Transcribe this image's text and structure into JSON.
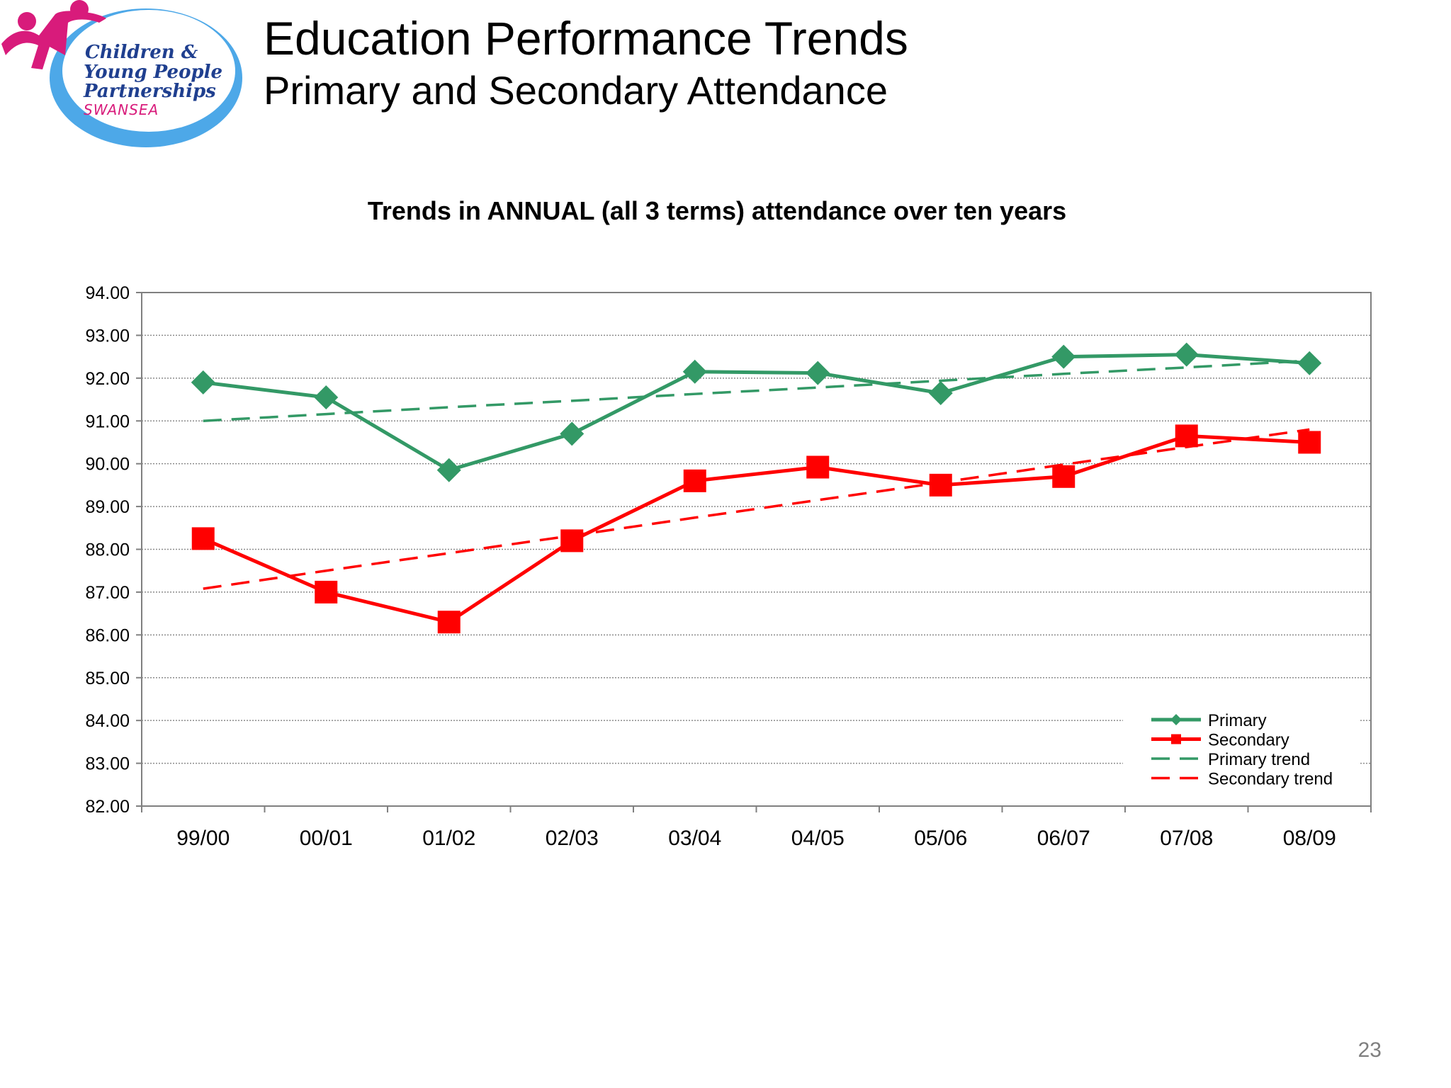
{
  "header": {
    "title": "Education Performance Trends",
    "subtitle": "Primary and Secondary Attendance"
  },
  "logo": {
    "line1": "Children &",
    "line2": "Young People",
    "line3": "Partnerships",
    "line4": "SWANSEA",
    "colors": {
      "ellipse": "#4da8e8",
      "figures": "#d81b7b",
      "text": "#1f3f8f",
      "swansea": "#d81b7b"
    }
  },
  "page_number": "23",
  "chart_data": {
    "type": "line",
    "title": "Trends in ANNUAL (all 3 terms) attendance over ten  years",
    "xlabel": "",
    "ylabel": "",
    "categories": [
      "99/00",
      "00/01",
      "01/02",
      "02/03",
      "03/04",
      "04/05",
      "05/06",
      "06/07",
      "07/08",
      "08/09"
    ],
    "ylim": [
      82,
      94
    ],
    "y_ticks": [
      "94.00",
      "93.00",
      "92.00",
      "91.00",
      "90.00",
      "89.00",
      "88.00",
      "87.00",
      "86.00",
      "85.00",
      "84.00",
      "83.00",
      "82.00"
    ],
    "grid": "horizontal dotted",
    "legend_position": "bottom-right",
    "series": [
      {
        "name": "Primary",
        "values": [
          91.9,
          91.55,
          89.85,
          90.7,
          92.15,
          92.12,
          91.65,
          92.5,
          92.55,
          92.35
        ],
        "color": "#339966",
        "marker": "diamond",
        "style": "solid"
      },
      {
        "name": "Secondary",
        "values": [
          88.25,
          87.0,
          86.3,
          88.2,
          89.6,
          89.92,
          89.5,
          89.7,
          90.65,
          90.5
        ],
        "color": "#ff0000",
        "marker": "square",
        "style": "solid"
      },
      {
        "name": "Primary trend",
        "values": [
          91.0,
          91.16,
          91.32,
          91.47,
          91.63,
          91.78,
          91.94,
          92.1,
          92.25,
          92.41
        ],
        "color": "#339966",
        "marker": "none",
        "style": "dashed"
      },
      {
        "name": "Secondary trend",
        "values": [
          87.08,
          87.5,
          87.91,
          88.32,
          88.74,
          89.15,
          89.56,
          89.98,
          90.39,
          90.8
        ],
        "color": "#ff0000",
        "marker": "none",
        "style": "dashed"
      }
    ]
  }
}
